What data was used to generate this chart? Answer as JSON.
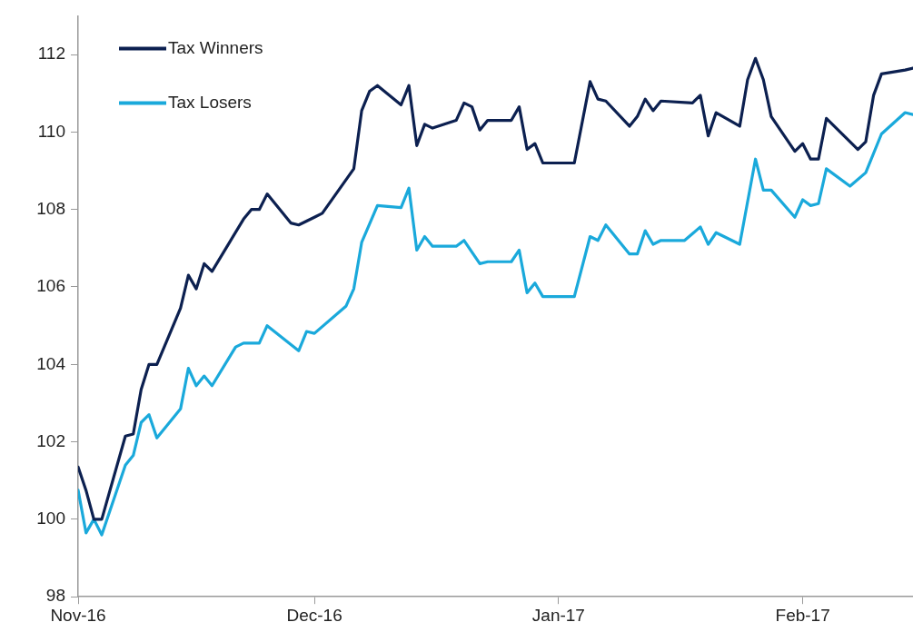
{
  "chart_data": {
    "type": "line",
    "legend": "top left",
    "grid": false,
    "marker": "none",
    "line_style": "solid",
    "xlim": [
      "2016-11-01",
      "2017-02-15"
    ],
    "xticks": [
      {
        "value": "2016-11-01",
        "label": "Nov-16"
      },
      {
        "value": "2016-12-01",
        "label": "Dec-16"
      },
      {
        "value": "2017-01-01",
        "label": "Jan-17"
      },
      {
        "value": "2017-02-01",
        "label": "Feb-17"
      }
    ],
    "ylim": [
      98,
      113
    ],
    "yticks": [
      98,
      100,
      102,
      104,
      106,
      108,
      110,
      112
    ],
    "series": [
      {
        "name": "Tax Winners",
        "color": "#0c2050",
        "x": [
          "2016-11-01",
          "2016-11-02",
          "2016-11-03",
          "2016-11-04",
          "2016-11-07",
          "2016-11-08",
          "2016-11-09",
          "2016-11-10",
          "2016-11-11",
          "2016-11-14",
          "2016-11-15",
          "2016-11-16",
          "2016-11-17",
          "2016-11-18",
          "2016-11-22",
          "2016-11-23",
          "2016-11-24",
          "2016-11-25",
          "2016-11-28",
          "2016-11-29",
          "2016-12-01",
          "2016-12-02",
          "2016-12-06",
          "2016-12-07",
          "2016-12-08",
          "2016-12-09",
          "2016-12-12",
          "2016-12-13",
          "2016-12-14",
          "2016-12-15",
          "2016-12-16",
          "2016-12-19",
          "2016-12-20",
          "2016-12-21",
          "2016-12-22",
          "2016-12-23",
          "2016-12-26",
          "2016-12-27",
          "2016-12-28",
          "2016-12-29",
          "2016-12-30",
          "2017-01-02",
          "2017-01-03",
          "2017-01-05",
          "2017-01-06",
          "2017-01-07",
          "2017-01-10",
          "2017-01-11",
          "2017-01-12",
          "2017-01-13",
          "2017-01-14",
          "2017-01-18",
          "2017-01-19",
          "2017-01-20",
          "2017-01-21",
          "2017-01-24",
          "2017-01-25",
          "2017-01-26",
          "2017-01-27",
          "2017-01-28",
          "2017-01-31",
          "2017-02-01",
          "2017-02-02",
          "2017-02-03",
          "2017-02-04",
          "2017-02-08",
          "2017-02-09",
          "2017-02-10",
          "2017-02-11",
          "2017-02-14",
          "2017-02-15"
        ],
        "values": [
          101.35,
          100.75,
          100.0,
          100.0,
          102.15,
          102.2,
          103.35,
          104.0,
          104.0,
          105.45,
          106.3,
          105.95,
          106.6,
          106.4,
          107.75,
          108.0,
          108.0,
          108.4,
          107.65,
          107.6,
          107.8,
          107.9,
          109.05,
          110.55,
          111.05,
          111.2,
          110.7,
          111.2,
          109.65,
          110.2,
          110.1,
          110.3,
          110.75,
          110.65,
          110.05,
          110.3,
          110.3,
          110.65,
          109.55,
          109.7,
          109.2,
          109.2,
          109.2,
          111.3,
          110.85,
          110.8,
          110.15,
          110.4,
          110.85,
          110.55,
          110.8,
          110.75,
          110.95,
          109.9,
          110.5,
          110.15,
          111.35,
          111.9,
          111.35,
          110.4,
          109.5,
          109.7,
          109.3,
          109.3,
          110.35,
          109.55,
          109.75,
          110.95,
          111.5,
          111.6,
          111.65
        ]
      },
      {
        "name": "Tax Losers",
        "color": "#1aa9db",
        "x": [
          "2016-11-01",
          "2016-11-02",
          "2016-11-03",
          "2016-11-04",
          "2016-11-07",
          "2016-11-08",
          "2016-11-09",
          "2016-11-10",
          "2016-11-11",
          "2016-11-14",
          "2016-11-15",
          "2016-11-16",
          "2016-11-17",
          "2016-11-18",
          "2016-11-21",
          "2016-11-22",
          "2016-11-24",
          "2016-11-25",
          "2016-11-29",
          "2016-11-30",
          "2016-12-01",
          "2016-12-05",
          "2016-12-06",
          "2016-12-07",
          "2016-12-09",
          "2016-12-12",
          "2016-12-13",
          "2016-12-14",
          "2016-12-15",
          "2016-12-16",
          "2016-12-19",
          "2016-12-20",
          "2016-12-22",
          "2016-12-23",
          "2016-12-26",
          "2016-12-27",
          "2016-12-28",
          "2016-12-29",
          "2016-12-30",
          "2017-01-02",
          "2017-01-03",
          "2017-01-05",
          "2017-01-06",
          "2017-01-07",
          "2017-01-10",
          "2017-01-11",
          "2017-01-12",
          "2017-01-13",
          "2017-01-14",
          "2017-01-17",
          "2017-01-19",
          "2017-01-20",
          "2017-01-21",
          "2017-01-24",
          "2017-01-26",
          "2017-01-27",
          "2017-01-28",
          "2017-01-31",
          "2017-02-01",
          "2017-02-02",
          "2017-02-03",
          "2017-02-04",
          "2017-02-07",
          "2017-02-09",
          "2017-02-11",
          "2017-02-14",
          "2017-02-15"
        ],
        "values": [
          100.75,
          99.65,
          100.0,
          99.6,
          101.4,
          101.65,
          102.5,
          102.7,
          102.1,
          102.85,
          103.9,
          103.45,
          103.7,
          103.45,
          104.45,
          104.55,
          104.55,
          105.0,
          104.35,
          104.85,
          104.8,
          105.5,
          105.95,
          107.15,
          108.1,
          108.05,
          108.55,
          106.95,
          107.3,
          107.05,
          107.05,
          107.2,
          106.6,
          106.65,
          106.65,
          106.95,
          105.85,
          106.1,
          105.75,
          105.75,
          105.75,
          107.3,
          107.2,
          107.6,
          106.85,
          106.85,
          107.45,
          107.1,
          107.2,
          107.2,
          107.55,
          107.1,
          107.4,
          107.1,
          109.3,
          108.5,
          108.5,
          107.8,
          108.25,
          108.1,
          108.15,
          109.05,
          108.6,
          108.95,
          109.95,
          110.5,
          110.45
        ]
      }
    ]
  }
}
